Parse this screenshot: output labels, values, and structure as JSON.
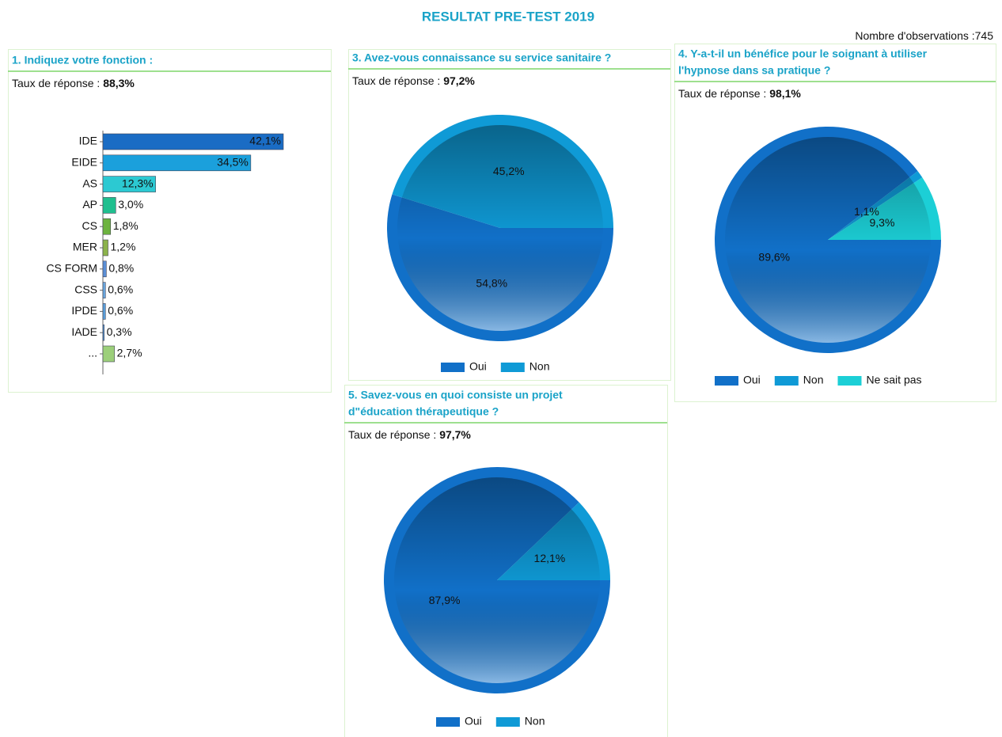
{
  "header": {
    "title": "RESULTAT PRE-TEST 2019",
    "observations_label": "Nombre d'observations :",
    "observations": 745
  },
  "chart_data": [
    {
      "type": "hbar",
      "title": [
        "1. Indiquez votre fonction :"
      ],
      "response_label": "Taux de réponse : ",
      "response_rate": "88,3%",
      "categories": [
        "IDE",
        "EIDE",
        "AS",
        "AP",
        "CS",
        "MER",
        "CS FORM",
        "CSS",
        "IPDE",
        "IADE",
        "..."
      ],
      "values": [
        42.1,
        34.5,
        12.3,
        3.0,
        1.8,
        1.2,
        0.8,
        0.6,
        0.6,
        0.3,
        2.7
      ],
      "value_labels": [
        "42,1%",
        "34,5%",
        "12,3%",
        "3,0%",
        "1,8%",
        "1,2%",
        "0,8%",
        "0,6%",
        "0,6%",
        "0,3%",
        "2,7%"
      ],
      "colors": [
        "#1a6cc4",
        "#1ba0dc",
        "#2cc9d2",
        "#20bf8f",
        "#6db33f",
        "#8cb34b",
        "#5b8fd6",
        "#6aa8e0",
        "#5aa0dc",
        "#4a8fd0",
        "#9ccf7a"
      ]
    },
    {
      "type": "pie",
      "title": [
        "3. Avez-vous connaissance su service sanitaire ?"
      ],
      "response_label": "Taux de réponse : ",
      "response_rate": "97,2%",
      "categories": [
        "Oui",
        "Non"
      ],
      "values": [
        54.8,
        45.2
      ],
      "value_labels": [
        "54,8%",
        "45,2%"
      ],
      "colors": [
        "#1170c8",
        "#0f9ad6"
      ]
    },
    {
      "type": "pie",
      "title": [
        "4. Y-a-t-il un bénéfice pour le soignant à utiliser",
        "l'hypnose dans sa pratique ?"
      ],
      "response_label": "Taux de réponse : ",
      "response_rate": "98,1%",
      "categories": [
        "Oui",
        "Non",
        "Ne sait pas"
      ],
      "values": [
        89.6,
        1.1,
        9.3
      ],
      "value_labels": [
        "89,6%",
        "1,1%",
        "9,3%"
      ],
      "colors": [
        "#1170c8",
        "#0f9ad6",
        "#1ccfd6"
      ]
    },
    {
      "type": "pie",
      "title": [
        "5. Savez-vous en quoi consiste un projet",
        "d\"éducation thérapeutique ?"
      ],
      "response_label": "Taux de réponse : ",
      "response_rate": "97,7%",
      "categories": [
        "Oui",
        "Non"
      ],
      "values": [
        87.9,
        12.1
      ],
      "value_labels": [
        "87,9%",
        "12,1%"
      ],
      "colors": [
        "#1170c8",
        "#0f9ad6"
      ]
    }
  ]
}
